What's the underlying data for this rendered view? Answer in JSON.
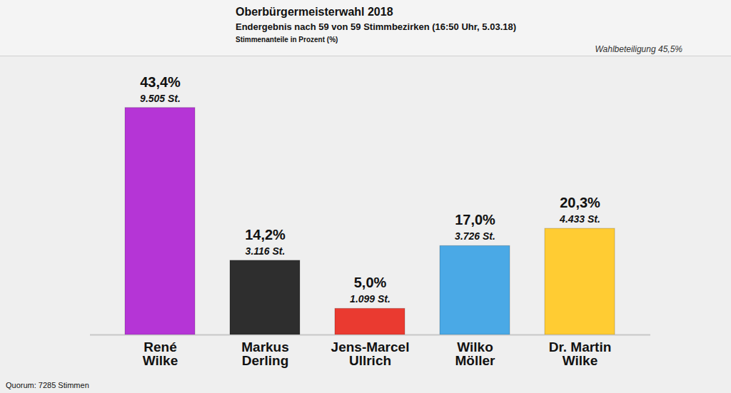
{
  "chart_data": {
    "type": "bar",
    "title": "Oberbürgermeisterwahl 2018",
    "subtitle": "Endergebnis nach 59 von 59 Stimmbezirken (16:50 Uhr, 5.03.18)",
    "note": "Stimmenanteile in Prozent (%)",
    "turnout": "Wahlbeteiligung 45,5%",
    "quorum": "Quorum: 7285 Stimmen",
    "categories": [
      "René Wilke",
      "Markus Derling",
      "Jens-Marcel Ullrich",
      "Wilko Möller",
      "Dr. Martin Wilke"
    ],
    "values": [
      43.4,
      14.2,
      5.0,
      17.0,
      20.3
    ],
    "value_labels": [
      "43,4%",
      "14,2%",
      "5,0%",
      "17,0%",
      "20,3%"
    ],
    "votes": [
      9505,
      3116,
      1099,
      3726,
      4433
    ],
    "vote_labels": [
      "9.505 St.",
      "3.116 St.",
      "1.099 St.",
      "3.726 St.",
      "4.433 St."
    ],
    "colors": [
      "#b535d6",
      "#2e2e2e",
      "#ea3a30",
      "#4aa9e6",
      "#ffcc33"
    ],
    "ylim": [
      0,
      45
    ],
    "data_labels": true,
    "tick_labels": "x",
    "grid": false
  }
}
